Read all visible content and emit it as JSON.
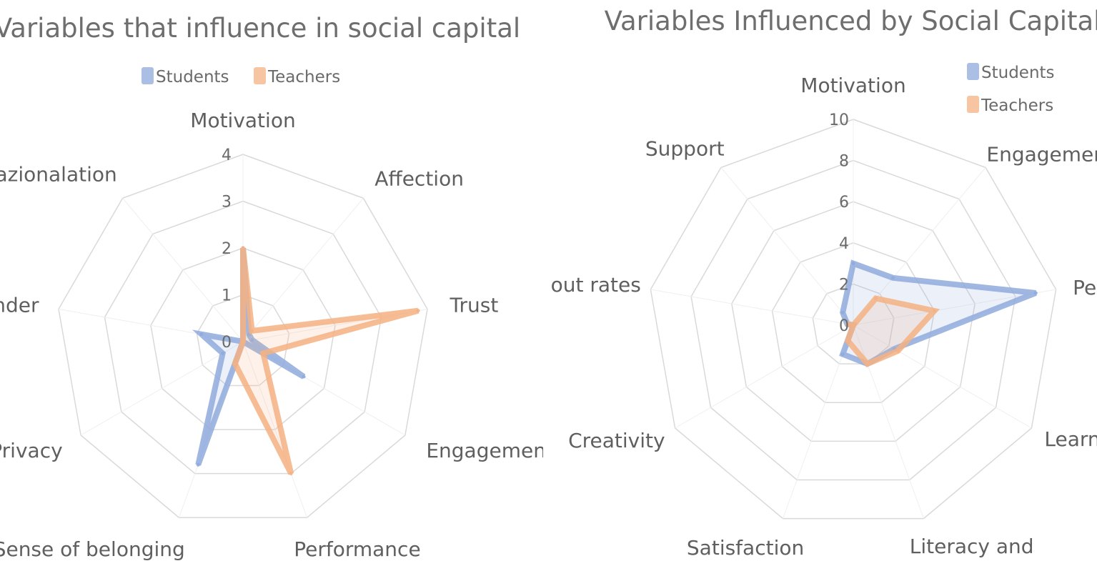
{
  "colors": {
    "students": "#8faadc",
    "teachers": "#f4b183",
    "grid": "#d9d9d9",
    "text": "#5f5f5f"
  },
  "chart_data": [
    {
      "type": "radar",
      "title": "Variables that influence in social capital",
      "categories": [
        "Motivation",
        "Affection",
        "Trust",
        "Engagement",
        "Performance",
        "Sense of belonging",
        "Privacy",
        "Gender",
        "Internazionalation"
      ],
      "rlim": [
        0,
        4
      ],
      "ticks": [
        0,
        1,
        2,
        3,
        4
      ],
      "legend_position": "top",
      "series": [
        {
          "name": "Students",
          "values": [
            2,
            0.2,
            0.2,
            1.5,
            0,
            2.8,
            0.5,
            0.9,
            0
          ]
        },
        {
          "name": "Teachers",
          "values": [
            2,
            0.3,
            3.8,
            0.5,
            3,
            0.5,
            0,
            0,
            0
          ]
        }
      ]
    },
    {
      "type": "radar",
      "title": "Variables Influenced by Social Capital",
      "categories": [
        "Motivation",
        "Engagement",
        "Performance",
        "Learning",
        "Literacy and\nlinguistic",
        "Satisfaction",
        "Creativity",
        "Droup out rates",
        "Support"
      ],
      "rlim": [
        0,
        10
      ],
      "ticks": [
        0,
        2,
        4,
        6,
        8,
        10
      ],
      "legend_position": "top-right",
      "series": [
        {
          "name": "Students",
          "values": [
            3,
            3,
            9,
            2.3,
            2,
            1.5,
            0,
            0.3,
            0.8
          ]
        },
        {
          "name": "Teachers",
          "values": [
            0,
            1.7,
            4,
            2.5,
            2,
            0.8,
            0,
            0.3,
            0
          ]
        }
      ]
    }
  ]
}
